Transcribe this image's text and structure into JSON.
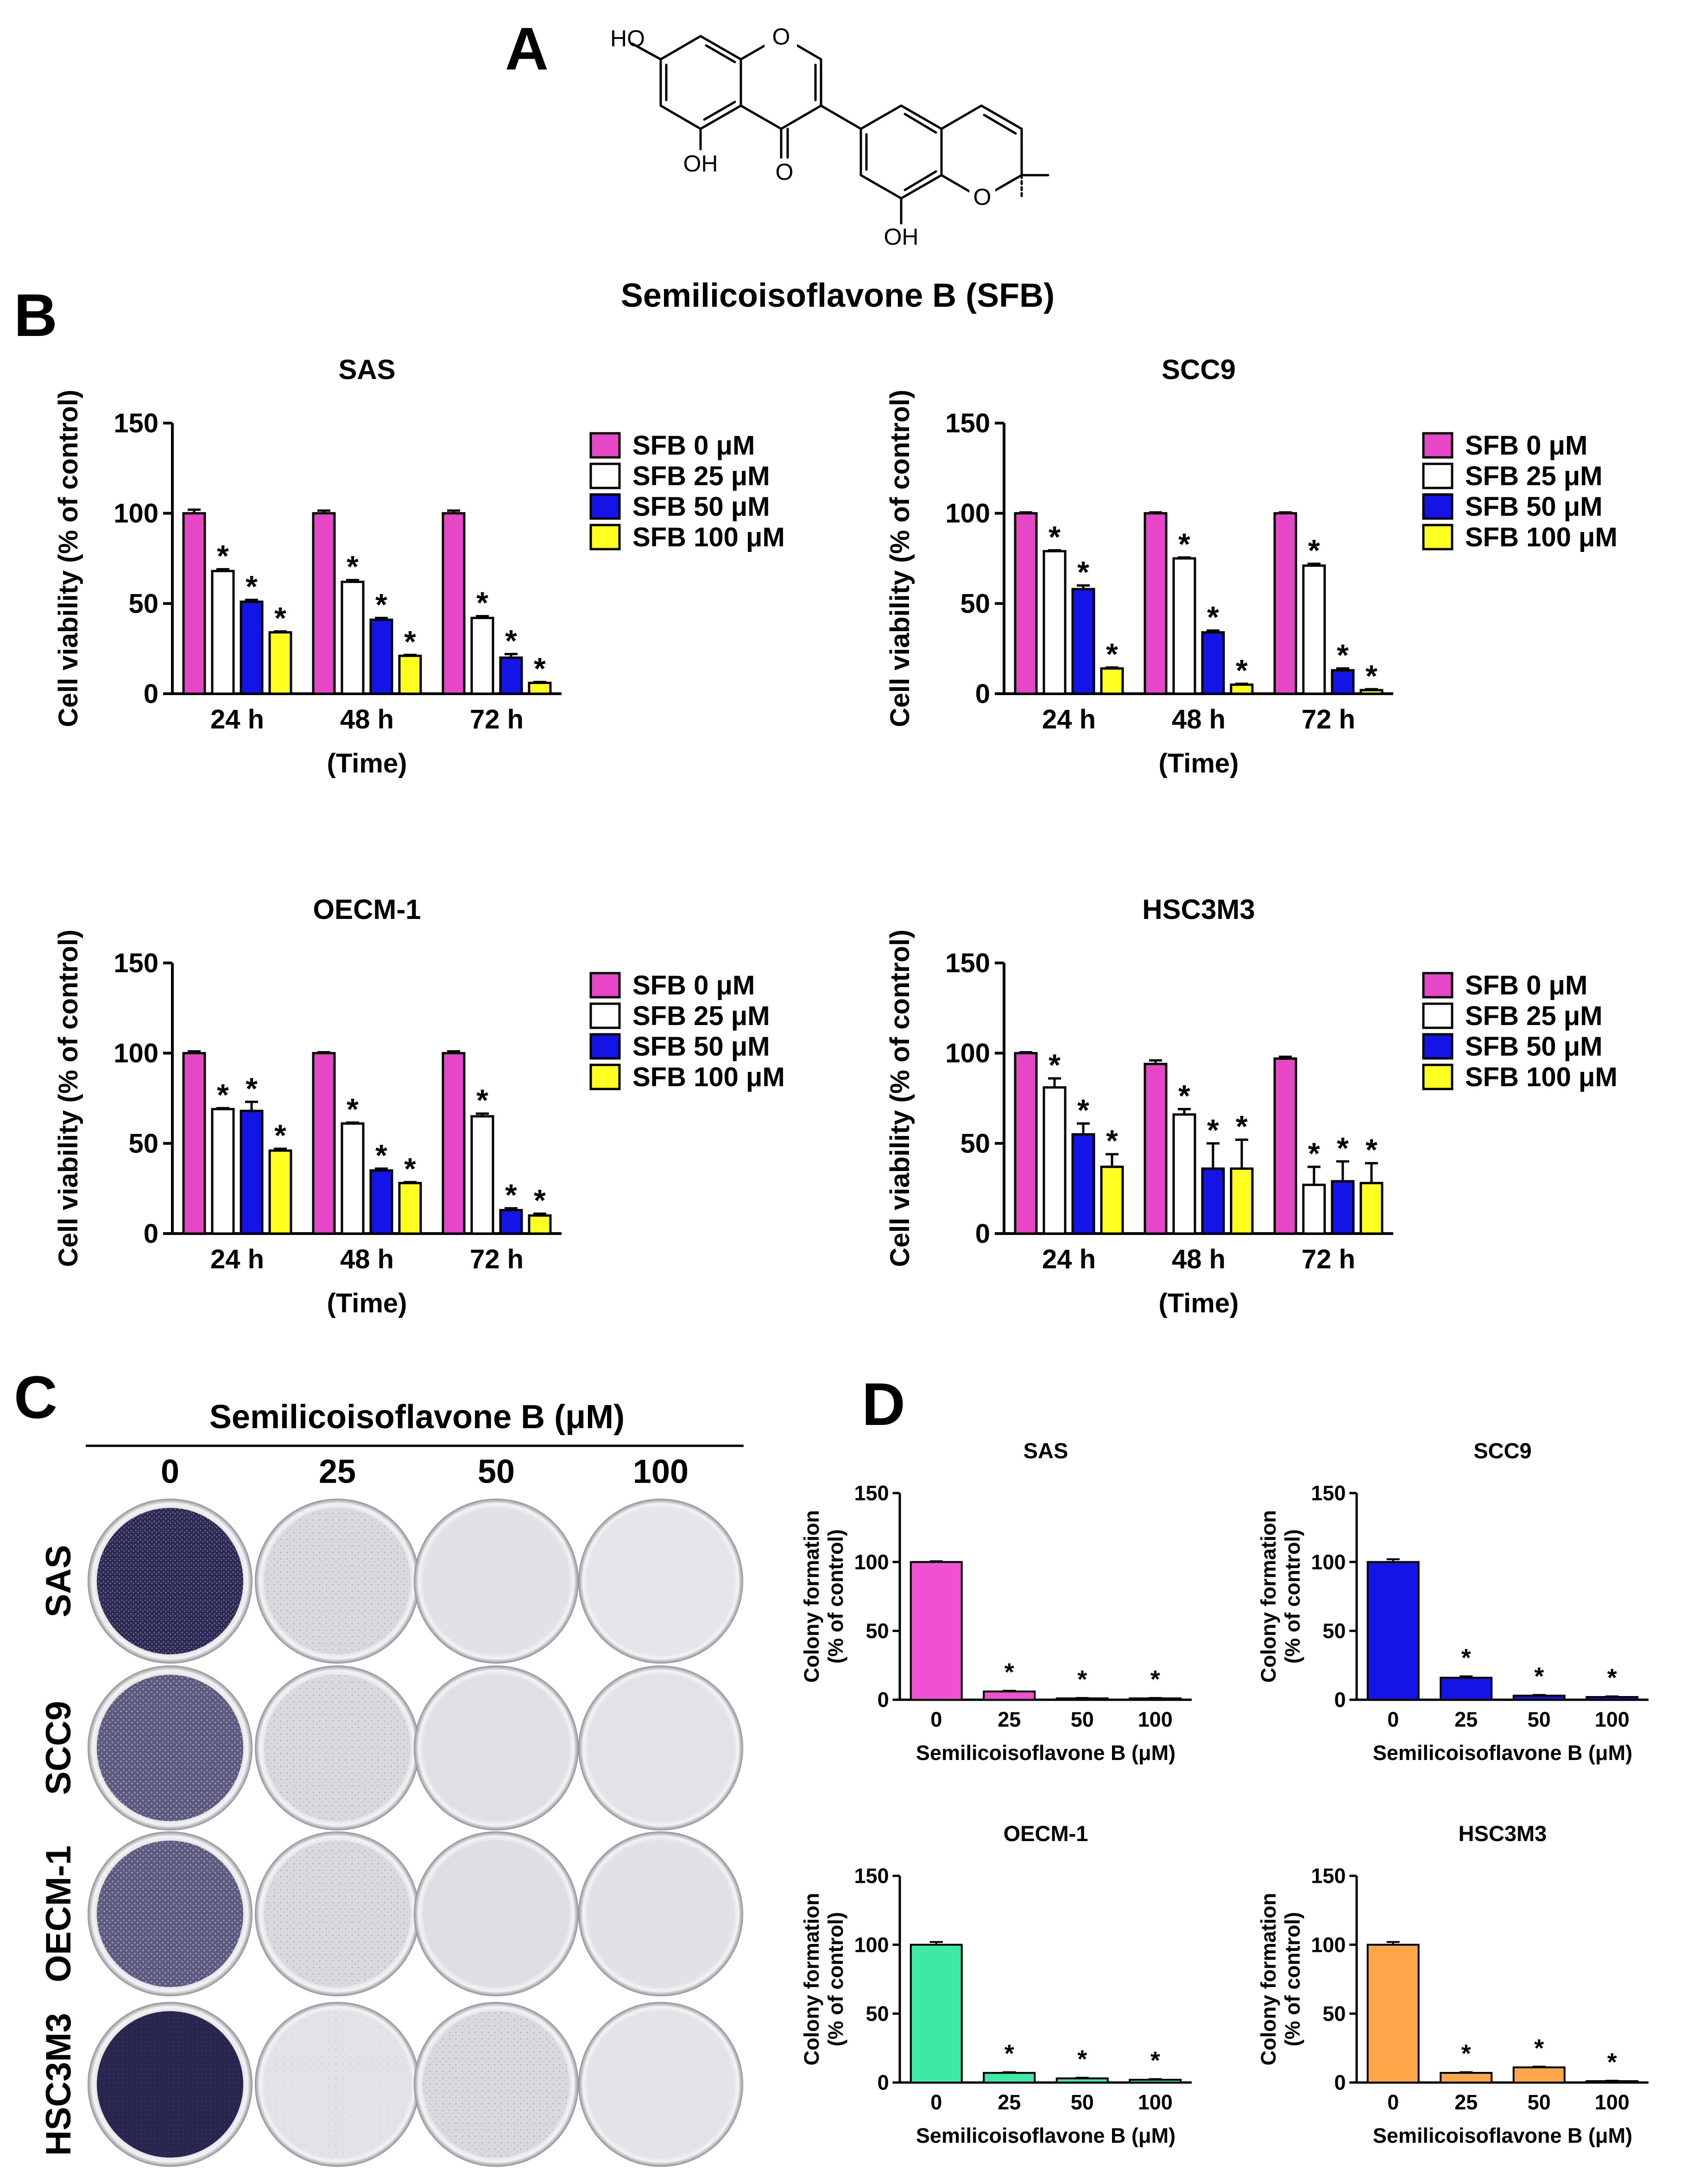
{
  "panels": {
    "a": "A",
    "b": "B",
    "c": "C",
    "d": "D"
  },
  "compound": {
    "name": "Semilicoisoflavone B (SFB)",
    "atoms": {
      "ho_top": "HO",
      "o_ring": "O",
      "oh_5": "OH",
      "o_keto": "O",
      "o_pyran": "O",
      "oh_8": "OH"
    }
  },
  "legend_b": [
    "SFB 0 μM",
    "SFB 25 μM",
    "SFB 50 μM",
    "SFB 100 μM"
  ],
  "colors": {
    "sfb0": "#e547c6",
    "sfb25": "#ffffff",
    "sfb50": "#1414e6",
    "sfb100": "#ffff22",
    "d_sas": "#f050d2",
    "d_scc9": "#1414e6",
    "d_oecm1": "#3ee8a6",
    "d_hsc3m3": "#ffa64a"
  },
  "colony_plates": {
    "title": "Semilicoisoflavone B (μM)",
    "doses": [
      "0",
      "25",
      "50",
      "100"
    ],
    "cell_lines": [
      "SAS",
      "SCC9",
      "OECM-1",
      "HSC3M3"
    ]
  },
  "chart_data": [
    {
      "id": "b-sas",
      "type": "bar",
      "title": "SAS",
      "categories": [
        "24 h",
        "48 h",
        "72 h"
      ],
      "xlabel": "(Time)",
      "ylabel": "Cell viability (% of control)",
      "ylim": [
        0,
        150
      ],
      "yticks": [
        0,
        50,
        100,
        150
      ],
      "series": [
        {
          "name": "SFB 0 μM",
          "values": [
            100,
            100,
            100
          ],
          "errors": [
            2,
            1.5,
            1.5
          ],
          "sig": [
            false,
            false,
            false
          ]
        },
        {
          "name": "SFB 25 μM",
          "values": [
            68,
            62,
            42
          ],
          "errors": [
            1,
            1,
            1
          ],
          "sig": [
            true,
            true,
            true
          ]
        },
        {
          "name": "SFB 50 μM",
          "values": [
            51,
            41,
            20
          ],
          "errors": [
            1,
            1,
            2
          ],
          "sig": [
            true,
            true,
            true
          ]
        },
        {
          "name": "SFB 100 μM",
          "values": [
            34,
            21,
            6
          ],
          "errors": [
            0.5,
            0.5,
            0.5
          ],
          "sig": [
            true,
            true,
            true
          ]
        }
      ]
    },
    {
      "id": "b-scc9",
      "type": "bar",
      "title": "SCC9",
      "categories": [
        "24 h",
        "48 h",
        "72 h"
      ],
      "xlabel": "(Time)",
      "ylabel": "Cell viability (% of control)",
      "ylim": [
        0,
        150
      ],
      "yticks": [
        0,
        50,
        100,
        150
      ],
      "series": [
        {
          "name": "SFB 0 μM",
          "values": [
            100,
            100,
            100
          ],
          "errors": [
            0.5,
            0.5,
            0.5
          ],
          "sig": [
            false,
            false,
            false
          ]
        },
        {
          "name": "SFB 25 μM",
          "values": [
            79,
            75,
            71
          ],
          "errors": [
            0.5,
            0.5,
            1
          ],
          "sig": [
            true,
            true,
            true
          ]
        },
        {
          "name": "SFB 50 μM",
          "values": [
            58,
            34,
            13
          ],
          "errors": [
            2,
            1,
            1
          ],
          "sig": [
            true,
            true,
            true
          ]
        },
        {
          "name": "SFB 100 μM",
          "values": [
            14,
            5,
            2
          ],
          "errors": [
            0.5,
            0.5,
            0.5
          ],
          "sig": [
            true,
            true,
            true
          ]
        }
      ]
    },
    {
      "id": "b-oecm1",
      "type": "bar",
      "title": "OECM-1",
      "categories": [
        "24 h",
        "48 h",
        "72 h"
      ],
      "xlabel": "(Time)",
      "ylabel": "Cell viability (% of control)",
      "ylim": [
        0,
        150
      ],
      "yticks": [
        0,
        50,
        100,
        150
      ],
      "series": [
        {
          "name": "SFB 0 μM",
          "values": [
            100,
            100,
            100
          ],
          "errors": [
            1,
            0.5,
            1
          ],
          "sig": [
            false,
            false,
            false
          ]
        },
        {
          "name": "SFB 25 μM",
          "values": [
            69,
            61,
            65
          ],
          "errors": [
            0.5,
            0.5,
            1.5
          ],
          "sig": [
            true,
            true,
            true
          ]
        },
        {
          "name": "SFB 50 μM",
          "values": [
            68,
            35,
            13
          ],
          "errors": [
            5,
            1,
            1
          ],
          "sig": [
            true,
            true,
            true
          ]
        },
        {
          "name": "SFB 100 μM",
          "values": [
            46,
            28,
            10
          ],
          "errors": [
            1,
            0.5,
            1
          ],
          "sig": [
            true,
            true,
            true
          ]
        }
      ]
    },
    {
      "id": "b-hsc3m3",
      "type": "bar",
      "title": "HSC3M3",
      "categories": [
        "24 h",
        "48 h",
        "72 h"
      ],
      "xlabel": "(Time)",
      "ylabel": "Cell viability (% of control)",
      "ylim": [
        0,
        150
      ],
      "yticks": [
        0,
        50,
        100,
        150
      ],
      "series": [
        {
          "name": "SFB 0 μM",
          "values": [
            100,
            94,
            97
          ],
          "errors": [
            0.5,
            2,
            1
          ],
          "sig": [
            false,
            false,
            false
          ]
        },
        {
          "name": "SFB 25 μM",
          "values": [
            81,
            66,
            27
          ],
          "errors": [
            5,
            3,
            10
          ],
          "sig": [
            true,
            true,
            true
          ]
        },
        {
          "name": "SFB 50 μM",
          "values": [
            55,
            36,
            29
          ],
          "errors": [
            6,
            14,
            11
          ],
          "sig": [
            true,
            true,
            true
          ]
        },
        {
          "name": "SFB 100 μM",
          "values": [
            37,
            36,
            28
          ],
          "errors": [
            7,
            16,
            11
          ],
          "sig": [
            true,
            true,
            true
          ]
        }
      ]
    },
    {
      "id": "d-sas",
      "type": "bar",
      "title": "SAS",
      "categories": [
        "0",
        "25",
        "50",
        "100"
      ],
      "xlabel": "Semilicoisoflavone B (μM)",
      "ylabel": [
        "Colony formation",
        "(% of control)"
      ],
      "ylim": [
        0,
        150
      ],
      "yticks": [
        0,
        50,
        100,
        150
      ],
      "values": [
        100,
        6,
        1,
        1
      ],
      "errors": [
        0.5,
        0.5,
        0.3,
        0.3
      ],
      "sig": [
        false,
        true,
        true,
        true
      ]
    },
    {
      "id": "d-scc9",
      "type": "bar",
      "title": "SCC9",
      "categories": [
        "0",
        "25",
        "50",
        "100"
      ],
      "xlabel": "Semilicoisoflavone B (μM)",
      "ylabel": [
        "Colony formation",
        "(% of control)"
      ],
      "ylim": [
        0,
        150
      ],
      "yticks": [
        0,
        50,
        100,
        150
      ],
      "values": [
        100,
        16,
        3,
        2
      ],
      "errors": [
        2,
        1,
        0.5,
        0.5
      ],
      "sig": [
        false,
        true,
        true,
        true
      ]
    },
    {
      "id": "d-oecm1",
      "type": "bar",
      "title": "OECM-1",
      "categories": [
        "0",
        "25",
        "50",
        "100"
      ],
      "xlabel": "Semilicoisoflavone B (μM)",
      "ylabel": [
        "Colony formation",
        "(% of control)"
      ],
      "ylim": [
        0,
        150
      ],
      "yticks": [
        0,
        50,
        100,
        150
      ],
      "values": [
        100,
        7,
        3,
        2
      ],
      "errors": [
        2,
        0.5,
        0.5,
        0.5
      ],
      "sig": [
        false,
        true,
        true,
        true
      ]
    },
    {
      "id": "d-hsc3m3",
      "type": "bar",
      "title": "HSC3M3",
      "categories": [
        "0",
        "25",
        "50",
        "100"
      ],
      "xlabel": "Semilicoisoflavone B (μM)",
      "ylabel": [
        "Colony formation",
        "(% of control)"
      ],
      "ylim": [
        0,
        150
      ],
      "yticks": [
        0,
        50,
        100,
        150
      ],
      "values": [
        100,
        7,
        11,
        1
      ],
      "errors": [
        2,
        0.5,
        0.5,
        0.3
      ],
      "sig": [
        false,
        true,
        true,
        true
      ]
    }
  ]
}
